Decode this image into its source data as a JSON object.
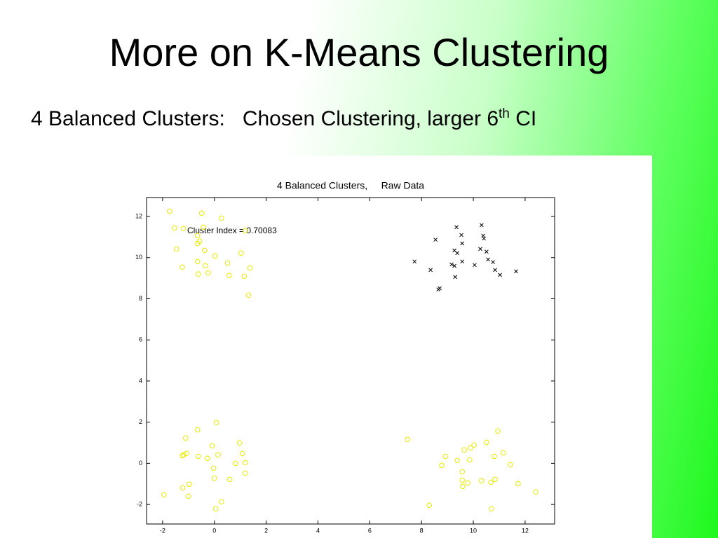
{
  "slide": {
    "title": "More on K-Means Clustering",
    "subtitle_left": "4 Balanced Clusters:",
    "subtitle_right": "Chosen Clustering, larger 6",
    "subtitle_sup": "th",
    "subtitle_end": " CI"
  },
  "chart_data": {
    "type": "scatter",
    "title": "4 Balanced Clusters,     Raw Data",
    "annotation": "Cluster Index = 0.70083",
    "xlim": [
      -2.62,
      13.14
    ],
    "ylim": [
      -2.95,
      12.92
    ],
    "xticks": [
      -2,
      0,
      2,
      4,
      6,
      8,
      10,
      12
    ],
    "yticks": [
      -2,
      0,
      2,
      4,
      6,
      8,
      10,
      12
    ],
    "series": [
      {
        "color": "#eaea00",
        "marker": "o",
        "x": [
          -1.73,
          -0.49,
          0.27,
          -1.54,
          -1.19,
          -0.65,
          -0.43,
          -0.57,
          -1.46,
          -0.65,
          0.03,
          1.03,
          -0.38,
          0.51,
          -1.24,
          -0.65,
          -0.35,
          -0.24,
          -0.62,
          0.57,
          1.16,
          1.38,
          1.32,
          1.19,
          -1.95,
          -1.11,
          -1.19,
          -1.08,
          -1.24,
          -0.62,
          -0.27,
          -0.08,
          0.08,
          -0.65,
          0.14,
          0.97,
          1.08,
          1.19,
          0.81,
          -0.03,
          0,
          0.59,
          1.19,
          -0.97,
          -1.22,
          -1,
          0.27,
          0.05,
          7.46,
          8.3,
          8.78,
          8.92,
          9.38,
          9.65,
          9.89,
          10.03,
          10.51,
          10.95,
          11.16,
          11.43,
          10.81,
          9.86,
          9.57,
          9.57,
          9.59,
          9.78,
          10.32,
          10.68,
          10.84,
          11.73,
          12.41,
          10.7
        ],
        "y": [
          12.26,
          12.16,
          11.92,
          11.44,
          11.41,
          11.07,
          11.48,
          10.8,
          10.42,
          10.69,
          10.08,
          10.22,
          10.35,
          9.74,
          9.54,
          9.81,
          9.6,
          9.26,
          9.2,
          9.13,
          9.09,
          9.5,
          8.17,
          11.31,
          -1.53,
          1.23,
          0.41,
          0.48,
          0.37,
          0.34,
          0.24,
          0.85,
          1.98,
          1.63,
          0.41,
          0.99,
          0.48,
          0.03,
          0,
          -0.24,
          -0.72,
          -0.78,
          -0.48,
          -1.02,
          -1.19,
          -1.6,
          -1.87,
          -2.21,
          1.16,
          -2.04,
          -0.1,
          0.34,
          0.14,
          0.65,
          0.75,
          0.89,
          1.02,
          1.57,
          0.51,
          -0.07,
          0.34,
          0.17,
          -0.41,
          -0.82,
          -1.12,
          -0.95,
          -0.85,
          -0.92,
          -0.78,
          -0.99,
          -1.4,
          -2.21
        ]
      },
      {
        "color": "#000000",
        "marker": "x",
        "x": [
          7.73,
          8.35,
          8.54,
          8.65,
          8.7,
          9.35,
          9.27,
          9.38,
          9.54,
          9.57,
          9.16,
          9.27,
          9.3,
          9.57,
          10.05,
          10.27,
          10.32,
          10.38,
          10.41,
          10.51,
          10.57,
          10.76,
          10.84,
          11.03,
          11.65
        ],
        "y": [
          9.81,
          9.4,
          10.87,
          8.45,
          8.51,
          11.48,
          10.35,
          10.22,
          11.1,
          10.69,
          9.67,
          9.6,
          9.06,
          9.81,
          9.64,
          10.42,
          11.58,
          11.07,
          10.93,
          10.29,
          9.91,
          9.78,
          9.4,
          9.16,
          9.33
        ]
      }
    ]
  }
}
